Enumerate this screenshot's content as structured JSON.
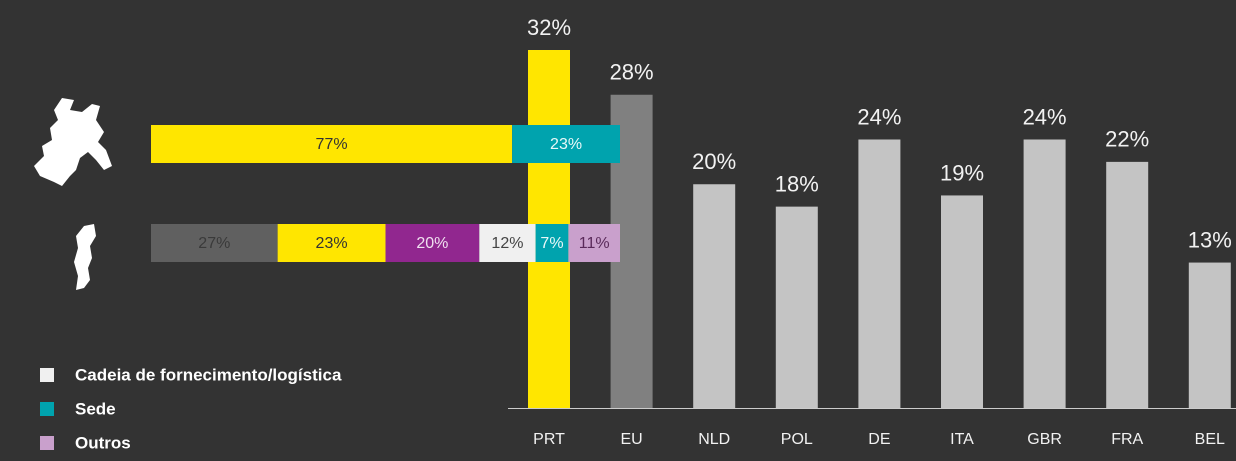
{
  "chart_data": [
    {
      "type": "bar",
      "categories": [
        "PRT",
        "EU",
        "NLD",
        "POL",
        "DE",
        "ITA",
        "GBR",
        "FRA",
        "BEL"
      ],
      "values": [
        32,
        28,
        20,
        18,
        24,
        19,
        24,
        22,
        13
      ],
      "value_labels": [
        "32%",
        "28%",
        "20%",
        "18%",
        "24%",
        "19%",
        "24%",
        "22%",
        "13%"
      ],
      "colors": [
        "#ffe600",
        "#808080",
        "#c4c4c4",
        "#c4c4c4",
        "#c4c4c4",
        "#c4c4c4",
        "#c4c4c4",
        "#c4c4c4",
        "#c4c4c4"
      ],
      "ylim": [
        0,
        32
      ]
    },
    {
      "type": "stacked_hbar",
      "xlim": [
        0,
        100
      ],
      "series": [
        {
          "color": "#606060",
          "values": [
            null,
            27
          ],
          "value_labels": [
            null,
            "27%"
          ]
        },
        {
          "color": "#ffe600",
          "values": [
            77,
            23
          ],
          "value_labels": [
            "77%",
            "23%"
          ]
        },
        {
          "color": "#91278f",
          "values": [
            null,
            20
          ],
          "value_labels": [
            null,
            "20%"
          ]
        },
        {
          "name": "Cadeia de fornecimento/logística",
          "color": "#f0f0f0",
          "values": [
            null,
            12
          ],
          "value_labels": [
            null,
            "12%"
          ]
        },
        {
          "name": "Sede",
          "color": "#00a3ae",
          "values": [
            23,
            7
          ],
          "value_labels": [
            "23%",
            "7%"
          ]
        },
        {
          "name": "Outros",
          "color": "#c9a0cc",
          "values": [
            null,
            11
          ],
          "value_labels": [
            null,
            "11%"
          ]
        }
      ]
    }
  ]
}
